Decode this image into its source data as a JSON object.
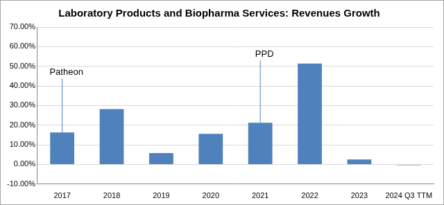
{
  "chart_data": {
    "type": "bar",
    "title": "Laboratory Products and Biopharma Services: Revenues Growth",
    "categories": [
      "2017",
      "2018",
      "2019",
      "2020",
      "2021",
      "2022",
      "2023",
      "2024 Q3 TTM"
    ],
    "values": [
      16.3,
      28.2,
      5.8,
      15.6,
      21.2,
      51.4,
      2.5,
      -0.4
    ],
    "color": "#4f81bd",
    "ylim": [
      -10,
      70
    ],
    "yticks": [
      {
        "value": -10,
        "label": "-10.00%"
      },
      {
        "value": 0,
        "label": "0.00%"
      },
      {
        "value": 10,
        "label": "10.00%"
      },
      {
        "value": 20,
        "label": "20.00%"
      },
      {
        "value": 30,
        "label": "30.00%"
      },
      {
        "value": 40,
        "label": "40.00%"
      },
      {
        "value": 50,
        "label": "50.00%"
      },
      {
        "value": 60,
        "label": "60.00%"
      },
      {
        "value": 70,
        "label": "70.00%"
      }
    ],
    "grid": true,
    "annotations": [
      {
        "text": "Patheon",
        "category": "2017"
      },
      {
        "text": "PPD",
        "category": "2021"
      }
    ]
  }
}
